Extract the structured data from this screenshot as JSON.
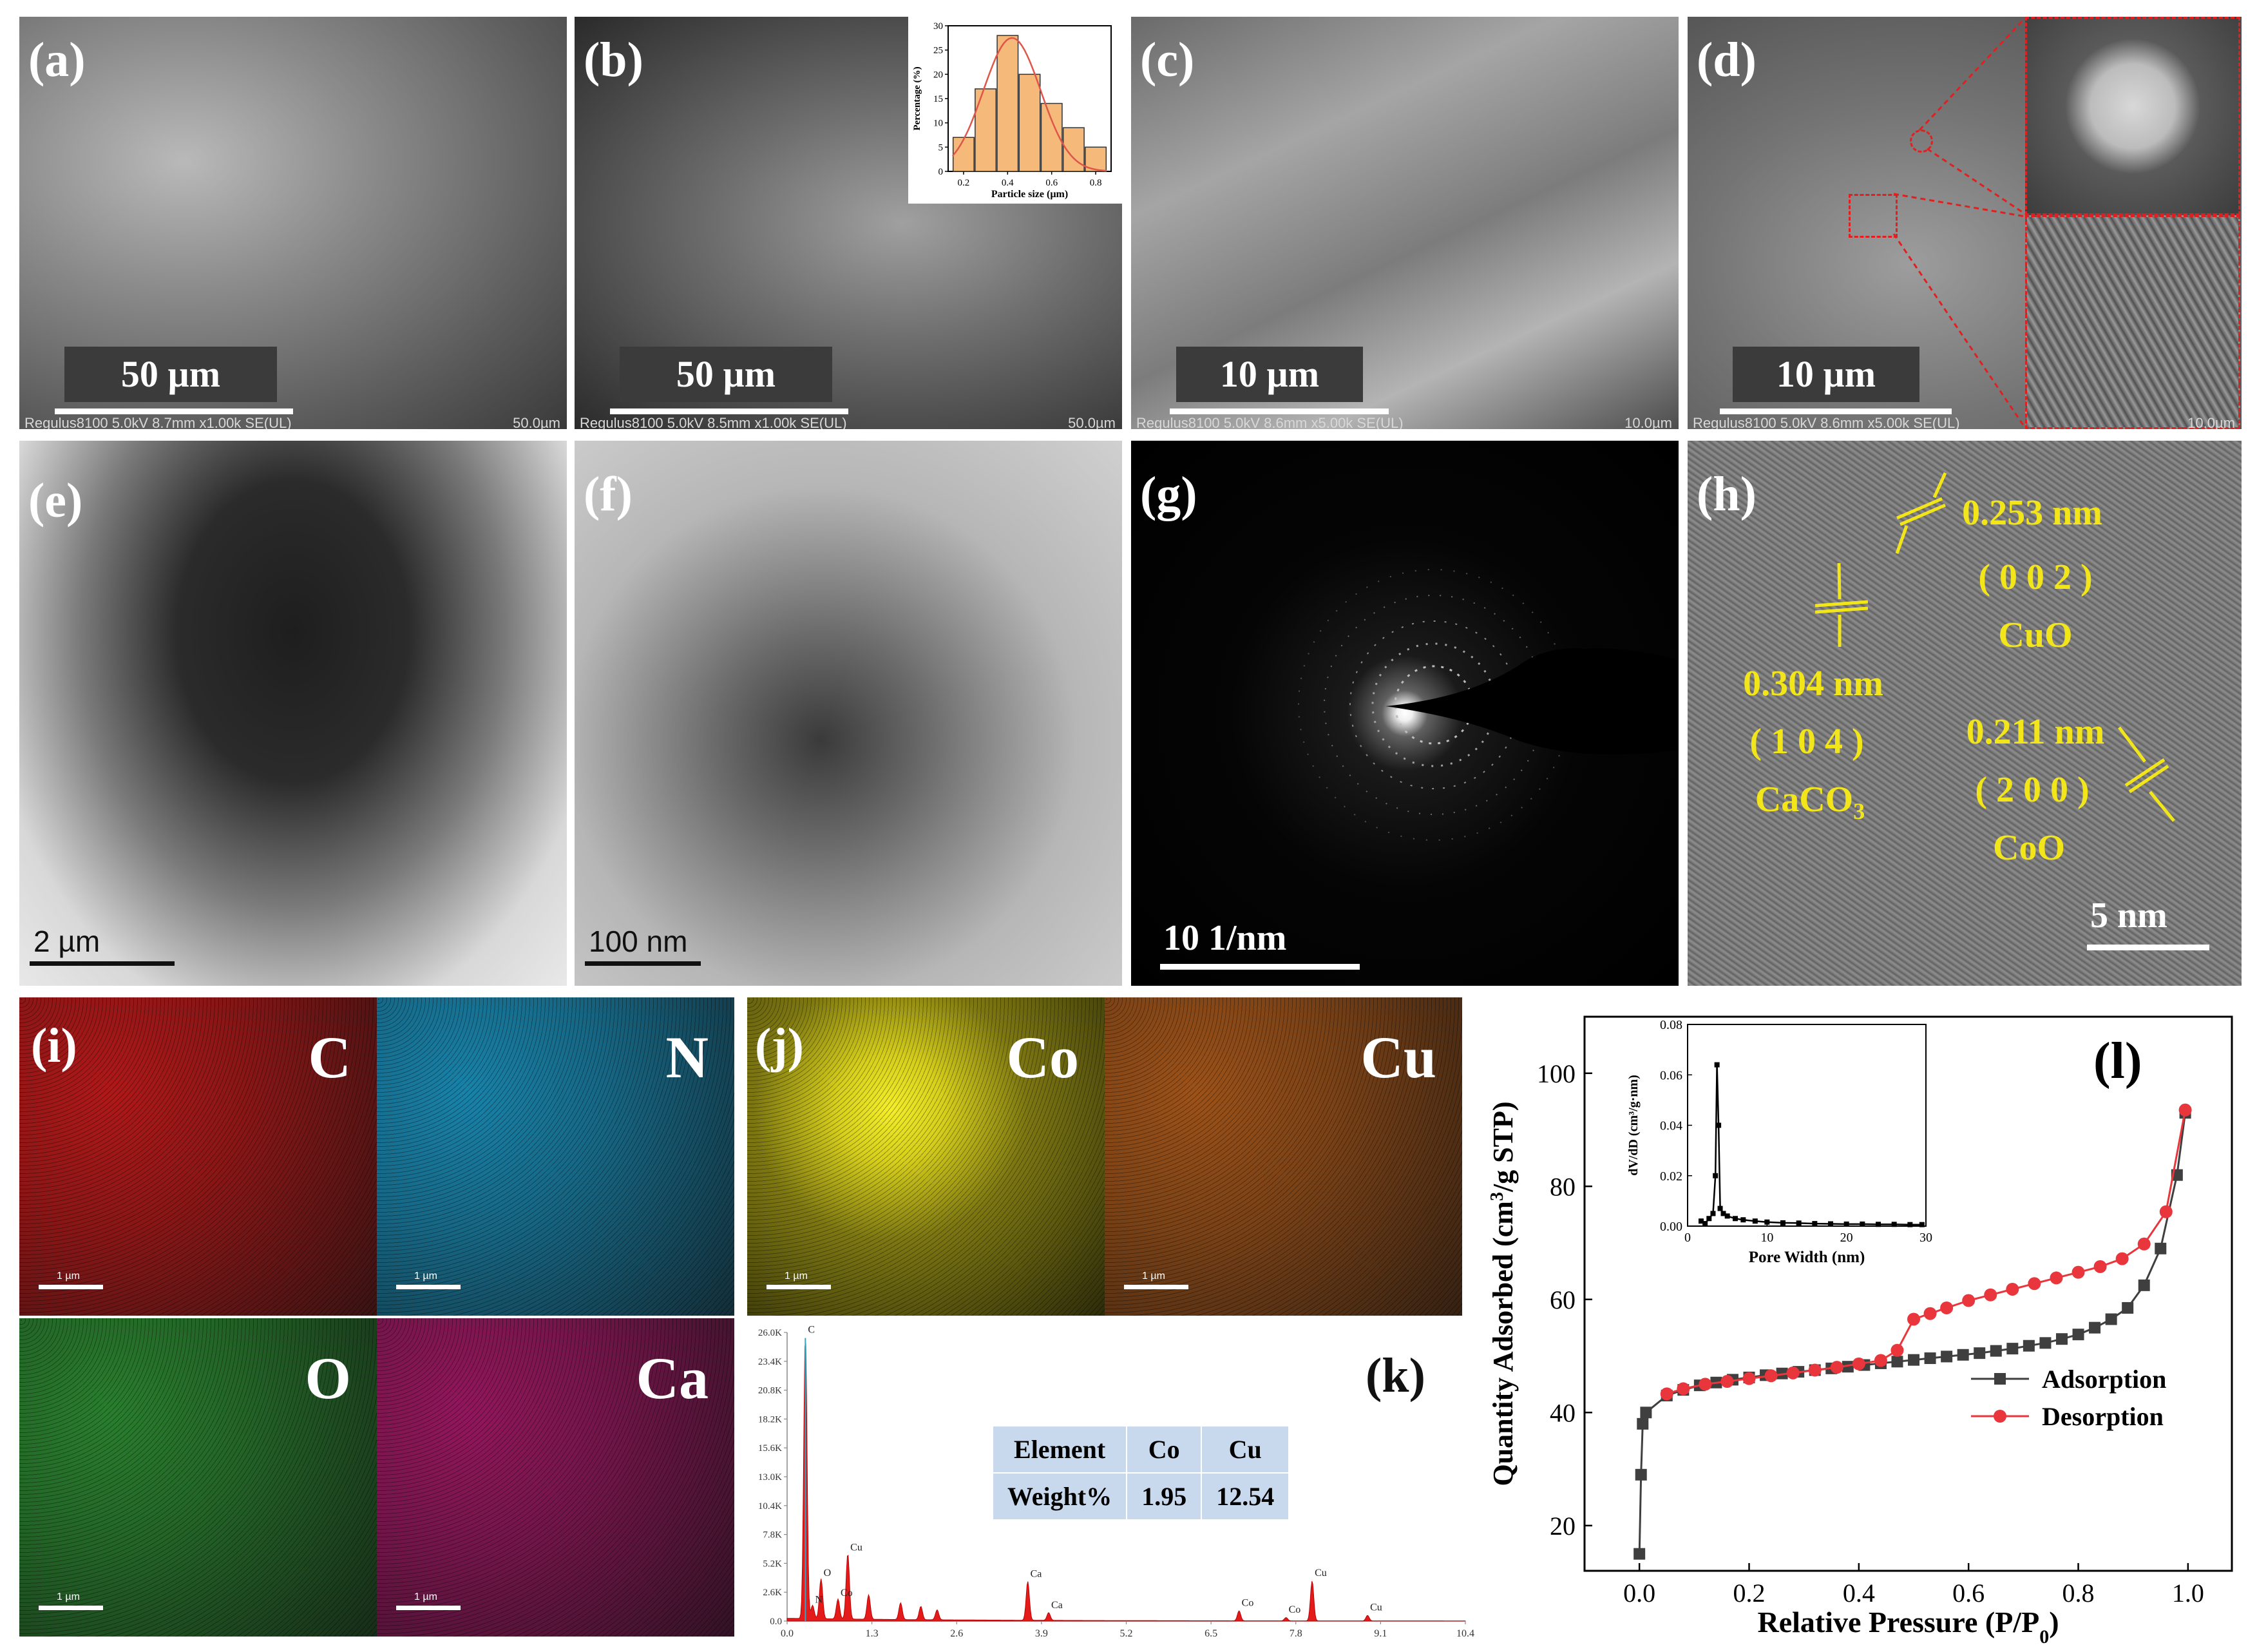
{
  "panels": {
    "a": {
      "label": "(a)",
      "scale": "50 µm",
      "footer_left": "Regulus8100 5.0kV 8.7mm x1.00k SE(UL)",
      "footer_right": "50.0µm"
    },
    "b": {
      "label": "(b)",
      "scale": "50 µm",
      "footer_left": "Regulus8100 5.0kV 8.5mm x1.00k SE(UL)",
      "footer_right": "50.0µm",
      "inset": {
        "ylabel": "Percentage (%)",
        "xlabel": "Particle size (µm)"
      }
    },
    "c": {
      "label": "(c)",
      "scale": "10 µm",
      "footer_left": "Regulus8100 5.0kV 8.6mm x5.00k SE(UL)",
      "footer_right": "10.0µm"
    },
    "d": {
      "label": "(d)",
      "scale": "10 µm",
      "footer_left": "Regulus8100 5.0kV 8.6mm x5.00k SE(UL)",
      "footer_right": "10.0µm"
    },
    "e": {
      "label": "(e)",
      "scale": "2 µm"
    },
    "f": {
      "label": "(f)",
      "scale": "100 nm"
    },
    "g": {
      "label": "(g)",
      "scale": "10 1/nm"
    },
    "h": {
      "label": "(h)",
      "scale": "5 nm",
      "annotations": {
        "d1": "0.253 nm",
        "hkl1": "( 0 0 2 )",
        "phase1": "CuO",
        "d2": "0.304 nm",
        "hkl2": "( 1 0 4 )",
        "phase2": "CaCO",
        "phase2_sub": "3",
        "d3": "0.211 nm",
        "hkl3": "( 2 0 0 )",
        "phase3": "CoO"
      }
    },
    "i": {
      "label": "(i)",
      "maps": [
        {
          "element": "C",
          "color": "#d81a1a",
          "scale": "1 µm"
        },
        {
          "element": "N",
          "color": "#1a9fd0",
          "scale": "1 µm"
        },
        {
          "element": "O",
          "color": "#2f9a35",
          "scale": "1 µm"
        },
        {
          "element": "Ca",
          "color": "#b3186f",
          "scale": "1 µm"
        }
      ]
    },
    "j": {
      "label": "(j)",
      "maps": [
        {
          "element": "Co",
          "color": "#c8c21a",
          "scale": "1 µm"
        },
        {
          "element": "Cu",
          "color": "#c0621a",
          "scale": "1 µm"
        }
      ]
    },
    "k": {
      "label": "(k)",
      "table": {
        "header": [
          "Element",
          "Co",
          "Cu"
        ],
        "row": [
          "Weight%",
          "1.95",
          "12.54"
        ]
      }
    },
    "l": {
      "label": "(l)"
    }
  },
  "colors": {
    "adsorption": "#3f3f3f",
    "desorption": "#e8363c",
    "yellow_annot": "#f2e51a",
    "table_bg": "#c8d9ee"
  },
  "chart_data": [
    {
      "id": "b-inset",
      "type": "bar",
      "xlabel": "Particle size (µm)",
      "ylabel": "Percentage (%)",
      "x": [
        0.2,
        0.3,
        0.4,
        0.5,
        0.6,
        0.7,
        0.8
      ],
      "values": [
        7,
        17,
        28,
        20,
        14,
        9,
        5
      ],
      "xticks": [
        "0.2",
        "0.4",
        "0.6",
        "0.8"
      ],
      "yticks": [
        "0",
        "5",
        "10",
        "15",
        "20",
        "25",
        "30"
      ],
      "ylim": [
        0,
        30
      ],
      "fit_curve": true
    },
    {
      "id": "k",
      "type": "area",
      "xticks": [
        "0.0",
        "1.3",
        "2.6",
        "3.9",
        "5.2",
        "6.5",
        "7.8",
        "9.1",
        "10.4"
      ],
      "yticks": [
        "0.0",
        "2.6K",
        "5.2K",
        "7.8K",
        "10.4K",
        "13.0K",
        "15.6K",
        "18.2K",
        "20.8K",
        "23.4K",
        "26.0K"
      ],
      "xlim": [
        0,
        10.4
      ],
      "ylim": [
        0,
        26000
      ],
      "peaks": [
        {
          "x": 0.28,
          "y": 25500,
          "label": "C"
        },
        {
          "x": 0.39,
          "y": 1200,
          "label": "N"
        },
        {
          "x": 0.52,
          "y": 3600,
          "label": "O"
        },
        {
          "x": 0.78,
          "y": 1800,
          "label": "Co"
        },
        {
          "x": 0.93,
          "y": 5900,
          "label": "Cu"
        },
        {
          "x": 1.25,
          "y": 2200,
          "label": ""
        },
        {
          "x": 1.74,
          "y": 1500,
          "label": ""
        },
        {
          "x": 2.05,
          "y": 1200,
          "label": ""
        },
        {
          "x": 2.3,
          "y": 900,
          "label": ""
        },
        {
          "x": 3.69,
          "y": 3500,
          "label": "Ca"
        },
        {
          "x": 4.01,
          "y": 700,
          "label": "Ca"
        },
        {
          "x": 6.93,
          "y": 900,
          "label": "Co"
        },
        {
          "x": 7.65,
          "y": 300,
          "label": "Co"
        },
        {
          "x": 8.05,
          "y": 3600,
          "label": "Cu"
        },
        {
          "x": 8.9,
          "y": 500,
          "label": "Cu"
        }
      ]
    },
    {
      "id": "l",
      "type": "line",
      "xlabel": "Relative Pressure (P/P",
      "xlabel_sub": "0",
      "xlabel_end": ")",
      "ylabel": "Quantity Adsorbed (cm",
      "ylabel_sup": "3",
      "ylabel_end": "/g STP)",
      "xlim": [
        -0.1,
        1.08
      ],
      "ylim": [
        12,
        110
      ],
      "xticks": [
        "0.0",
        "0.2",
        "0.4",
        "0.6",
        "0.8",
        "1.0"
      ],
      "yticks": [
        "20",
        "40",
        "60",
        "80",
        "100"
      ],
      "legend": "bottom-right",
      "series": [
        {
          "name": "Adsorption",
          "marker": "square",
          "x": [
            0.0,
            0.003,
            0.006,
            0.012,
            0.05,
            0.08,
            0.11,
            0.14,
            0.17,
            0.2,
            0.23,
            0.26,
            0.29,
            0.32,
            0.35,
            0.38,
            0.41,
            0.44,
            0.47,
            0.5,
            0.53,
            0.56,
            0.59,
            0.62,
            0.65,
            0.68,
            0.71,
            0.74,
            0.77,
            0.8,
            0.83,
            0.86,
            0.89,
            0.92,
            0.95,
            0.98,
            0.995
          ],
          "y": [
            15,
            29,
            38,
            40,
            43,
            44,
            44.8,
            45.3,
            45.8,
            46.2,
            46.6,
            46.9,
            47.2,
            47.5,
            47.8,
            48.1,
            48.4,
            48.7,
            49.0,
            49.3,
            49.6,
            49.9,
            50.2,
            50.5,
            50.9,
            51.3,
            51.8,
            52.3,
            53.0,
            53.8,
            55.0,
            56.5,
            58.5,
            62.5,
            69,
            82,
            93
          ]
        },
        {
          "name": "Desorption",
          "marker": "circle",
          "x": [
            0.995,
            0.96,
            0.92,
            0.88,
            0.84,
            0.8,
            0.76,
            0.72,
            0.68,
            0.64,
            0.6,
            0.56,
            0.53,
            0.5,
            0.47,
            0.44,
            0.4,
            0.36,
            0.32,
            0.28,
            0.24,
            0.2,
            0.16,
            0.12,
            0.08,
            0.05
          ],
          "y": [
            93.5,
            75.5,
            69.8,
            67.2,
            65.8,
            64.8,
            63.8,
            62.8,
            61.8,
            60.8,
            59.8,
            58.5,
            57.5,
            56.5,
            51,
            49.2,
            48.6,
            48.0,
            47.5,
            47.0,
            46.5,
            46.0,
            45.5,
            45.0,
            44.2,
            43.3
          ]
        }
      ],
      "inset": {
        "xlabel": "Pore Width (nm)",
        "ylabel": "dV/dD (cm³/g·nm)",
        "xlim": [
          0,
          30
        ],
        "ylim": [
          0,
          0.08
        ],
        "xticks": [
          "0",
          "10",
          "20",
          "30"
        ],
        "yticks": [
          "0.00",
          "0.02",
          "0.04",
          "0.06",
          "0.08"
        ],
        "x": [
          1.7,
          2.2,
          2.7,
          3.2,
          3.5,
          3.7,
          3.9,
          4.1,
          4.5,
          5,
          6,
          7,
          8.5,
          10,
          12,
          14,
          16,
          18,
          20,
          22,
          24,
          26,
          28,
          29.5
        ],
        "y": [
          0.002,
          0.001,
          0.003,
          0.005,
          0.02,
          0.064,
          0.04,
          0.007,
          0.005,
          0.004,
          0.003,
          0.0025,
          0.002,
          0.0016,
          0.0013,
          0.0012,
          0.001,
          0.0009,
          0.0008,
          0.0008,
          0.0007,
          0.0007,
          0.0006,
          0.0006
        ]
      }
    }
  ]
}
